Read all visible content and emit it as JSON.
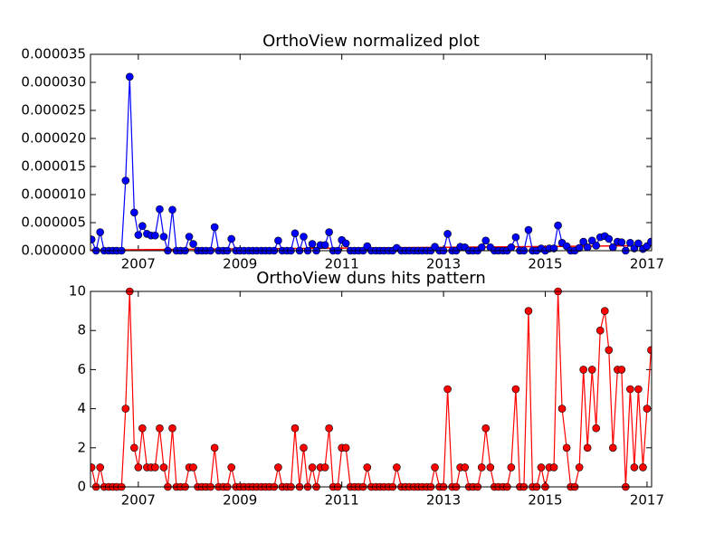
{
  "chart_data": [
    {
      "type": "line",
      "title": "OrthoView normalized plot",
      "x": [
        2006.08,
        2006.17,
        2006.25,
        2006.33,
        2006.42,
        2006.5,
        2006.58,
        2006.67,
        2006.75,
        2006.83,
        2006.92,
        2007,
        2007.08,
        2007.17,
        2007.25,
        2007.33,
        2007.42,
        2007.5,
        2007.58,
        2007.67,
        2007.75,
        2007.83,
        2007.92,
        2008,
        2008.08,
        2008.17,
        2008.25,
        2008.33,
        2008.42,
        2008.5,
        2008.58,
        2008.67,
        2008.75,
        2008.83,
        2008.92,
        2009,
        2009.08,
        2009.17,
        2009.25,
        2009.33,
        2009.42,
        2009.5,
        2009.58,
        2009.67,
        2009.75,
        2009.83,
        2009.92,
        2010,
        2010.08,
        2010.17,
        2010.25,
        2010.33,
        2010.42,
        2010.5,
        2010.58,
        2010.67,
        2010.75,
        2010.83,
        2010.92,
        2011,
        2011.08,
        2011.17,
        2011.25,
        2011.33,
        2011.42,
        2011.5,
        2011.58,
        2011.67,
        2011.75,
        2011.83,
        2011.92,
        2012,
        2012.08,
        2012.17,
        2012.25,
        2012.33,
        2012.42,
        2012.5,
        2012.58,
        2012.67,
        2012.75,
        2012.83,
        2012.92,
        2013,
        2013.08,
        2013.17,
        2013.25,
        2013.33,
        2013.42,
        2013.5,
        2013.58,
        2013.67,
        2013.75,
        2013.83,
        2013.92,
        2014,
        2014.08,
        2014.17,
        2014.25,
        2014.33,
        2014.42,
        2014.5,
        2014.58,
        2014.67,
        2014.75,
        2014.83,
        2014.92,
        2015,
        2015.08,
        2015.17,
        2015.25,
        2015.33,
        2015.42,
        2015.5,
        2015.58,
        2015.67,
        2015.75,
        2015.83,
        2015.92,
        2016,
        2016.08,
        2016.17,
        2016.25,
        2016.33,
        2016.42,
        2016.5,
        2016.58,
        2016.67,
        2016.75,
        2016.83,
        2016.92,
        2017,
        2017.08
      ],
      "series": [
        {
          "color": "#0000ff",
          "marker": true,
          "values": [
            2e-06,
            0,
            3.3e-06,
            0,
            0,
            0,
            0,
            0,
            1.25e-05,
            3.1e-05,
            6.8e-06,
            2.8e-06,
            4.4e-06,
            3e-06,
            2.7e-06,
            2.7e-06,
            7.4e-06,
            2.5e-06,
            0,
            7.3e-06,
            0,
            0,
            0,
            2.5e-06,
            1.2e-06,
            0,
            0,
            0,
            0,
            4.2e-06,
            0,
            0,
            0,
            2.1e-06,
            0,
            0,
            0,
            0,
            0,
            0,
            0,
            0,
            0,
            0,
            1.8e-06,
            0,
            0,
            0,
            3.1e-06,
            0,
            2.5e-06,
            0,
            1.2e-06,
            0,
            1e-06,
            1e-06,
            3.3e-06,
            0,
            0,
            1.9e-06,
            1.3e-06,
            0,
            0,
            0,
            0,
            8e-07,
            0,
            0,
            0,
            0,
            0,
            0,
            5e-07,
            0,
            0,
            0,
            0,
            0,
            0,
            0,
            0,
            7e-07,
            0,
            0,
            3e-06,
            0,
            0,
            7e-07,
            6e-07,
            0,
            0,
            0,
            6e-07,
            1.8e-06,
            6e-07,
            0,
            0,
            0,
            0,
            6e-07,
            2.4e-06,
            0,
            0,
            3.7e-06,
            0,
            0,
            4e-07,
            0,
            4e-07,
            4e-07,
            4.5e-06,
            1.4e-06,
            8e-07,
            0,
            0,
            5e-07,
            1.6e-06,
            6e-07,
            1.8e-06,
            9e-07,
            2.4e-06,
            2.6e-06,
            2.1e-06,
            6e-07,
            1.6e-06,
            1.5e-06,
            0,
            1.4e-06,
            4e-07,
            1.3e-06,
            3e-07,
            8e-07,
            1.6e-06
          ]
        },
        {
          "color": "#ff0000",
          "marker": false,
          "x": [
            2006.06,
            2017.09
          ],
          "values": [
            1e-07,
            9e-07
          ]
        }
      ],
      "xlim": [
        2006.06,
        2017.09
      ],
      "xticks": [
        2007,
        2009,
        2011,
        2013,
        2015,
        2017
      ],
      "ylim": [
        0,
        3.5e-05
      ],
      "yticks": [
        {
          "value": 0,
          "label": "0.000000"
        },
        {
          "value": 5e-06,
          "label": "0.000005"
        },
        {
          "value": 1e-05,
          "label": "0.000010"
        },
        {
          "value": 1.5e-05,
          "label": "0.000015"
        },
        {
          "value": 2e-05,
          "label": "0.000020"
        },
        {
          "value": 2.5e-05,
          "label": "0.000025"
        },
        {
          "value": 3e-05,
          "label": "0.000030"
        },
        {
          "value": 3.5e-05,
          "label": "0.000035"
        }
      ]
    },
    {
      "type": "line",
      "title": "OrthoView duns hits pattern",
      "x": [
        2006.08,
        2006.17,
        2006.25,
        2006.33,
        2006.42,
        2006.5,
        2006.58,
        2006.67,
        2006.75,
        2006.83,
        2006.92,
        2007,
        2007.08,
        2007.17,
        2007.25,
        2007.33,
        2007.42,
        2007.5,
        2007.58,
        2007.67,
        2007.75,
        2007.83,
        2007.92,
        2008,
        2008.08,
        2008.17,
        2008.25,
        2008.33,
        2008.42,
        2008.5,
        2008.58,
        2008.67,
        2008.75,
        2008.83,
        2008.92,
        2009,
        2009.08,
        2009.17,
        2009.25,
        2009.33,
        2009.42,
        2009.5,
        2009.58,
        2009.67,
        2009.75,
        2009.83,
        2009.92,
        2010,
        2010.08,
        2010.17,
        2010.25,
        2010.33,
        2010.42,
        2010.5,
        2010.58,
        2010.67,
        2010.75,
        2010.83,
        2010.92,
        2011,
        2011.08,
        2011.17,
        2011.25,
        2011.33,
        2011.42,
        2011.5,
        2011.58,
        2011.67,
        2011.75,
        2011.83,
        2011.92,
        2012,
        2012.08,
        2012.17,
        2012.25,
        2012.33,
        2012.42,
        2012.5,
        2012.58,
        2012.67,
        2012.75,
        2012.83,
        2012.92,
        2013,
        2013.08,
        2013.17,
        2013.25,
        2013.33,
        2013.42,
        2013.5,
        2013.58,
        2013.67,
        2013.75,
        2013.83,
        2013.92,
        2014,
        2014.08,
        2014.17,
        2014.25,
        2014.33,
        2014.42,
        2014.5,
        2014.58,
        2014.67,
        2014.75,
        2014.83,
        2014.92,
        2015,
        2015.08,
        2015.17,
        2015.25,
        2015.33,
        2015.42,
        2015.5,
        2015.58,
        2015.67,
        2015.75,
        2015.83,
        2015.92,
        2016,
        2016.08,
        2016.17,
        2016.25,
        2016.33,
        2016.42,
        2016.5,
        2016.58,
        2016.67,
        2016.75,
        2016.83,
        2016.92,
        2017,
        2017.08
      ],
      "series": [
        {
          "color": "#ff0000",
          "marker": true,
          "values": [
            1,
            0,
            1,
            0,
            0,
            0,
            0,
            0,
            4,
            10,
            2,
            1,
            3,
            1,
            1,
            1,
            3,
            1,
            0,
            3,
            0,
            0,
            0,
            1,
            1,
            0,
            0,
            0,
            0,
            2,
            0,
            0,
            0,
            1,
            0,
            0,
            0,
            0,
            0,
            0,
            0,
            0,
            0,
            0,
            1,
            0,
            0,
            0,
            3,
            0,
            2,
            0,
            1,
            0,
            1,
            1,
            3,
            0,
            0,
            2,
            2,
            0,
            0,
            0,
            0,
            1,
            0,
            0,
            0,
            0,
            0,
            0,
            1,
            0,
            0,
            0,
            0,
            0,
            0,
            0,
            0,
            1,
            0,
            0,
            5,
            0,
            0,
            1,
            1,
            0,
            0,
            0,
            1,
            3,
            1,
            0,
            0,
            0,
            0,
            1,
            5,
            0,
            0,
            9,
            0,
            0,
            1,
            0,
            1,
            1,
            10,
            4,
            2,
            0,
            0,
            1,
            6,
            2,
            6,
            3,
            8,
            9,
            7,
            2,
            6,
            6,
            0,
            5,
            1,
            5,
            1,
            4,
            7
          ]
        }
      ],
      "xlim": [
        2006.06,
        2017.09
      ],
      "xticks": [
        2007,
        2009,
        2011,
        2013,
        2015,
        2017
      ],
      "ylim": [
        0,
        10
      ],
      "yticks": [
        0,
        2,
        4,
        6,
        8,
        10
      ]
    }
  ]
}
